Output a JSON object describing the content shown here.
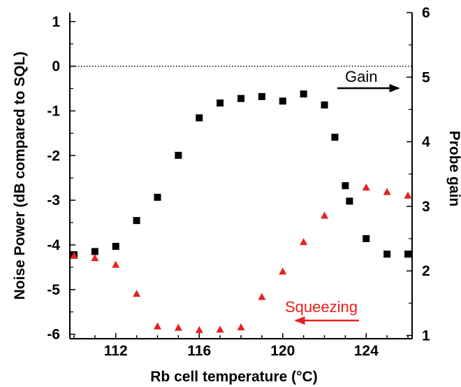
{
  "chart_data": {
    "type": "scatter",
    "title": "",
    "xlabel": "Rb cell temperature (°C)",
    "ylabel_left": "Noise Power (dB compared to SQL)",
    "ylabel_right": "Probe gain",
    "xlim": [
      109.8,
      126.2
    ],
    "ylim_left": [
      -6.1,
      1.2
    ],
    "ylim_right": [
      0.95,
      6.0
    ],
    "x_ticks": [
      112,
      116,
      120,
      124
    ],
    "x_tick_labels": [
      "112",
      "116",
      "120",
      "124"
    ],
    "y_left_ticks": [
      1,
      0,
      -1,
      -2,
      -3,
      -4,
      -5,
      -6
    ],
    "y_left_tick_labels": [
      "1",
      "0",
      "-1",
      "-2",
      "-3",
      "-4",
      "-5",
      "-6"
    ],
    "y_right_ticks": [
      1,
      2,
      3,
      4,
      5,
      6
    ],
    "y_right_tick_labels": [
      "1",
      "2",
      "3",
      "4",
      "5",
      "6"
    ],
    "reference_line": {
      "axis": "left",
      "y": 0,
      "style": "dotted"
    },
    "grid": false,
    "series": [
      {
        "name": "Gain",
        "axis": "right",
        "marker": "square",
        "color": "#000000",
        "x": [
          110,
          111,
          112,
          113,
          114,
          115,
          116,
          117,
          118,
          119,
          120,
          121,
          122,
          122.5,
          123,
          123.2,
          124,
          125,
          126
        ],
        "y": [
          2.25,
          2.3,
          2.38,
          2.78,
          3.14,
          3.79,
          4.37,
          4.6,
          4.67,
          4.7,
          4.63,
          4.74,
          4.57,
          4.07,
          3.32,
          3.08,
          2.5,
          2.26,
          2.26
        ]
      },
      {
        "name": "Squeezing",
        "axis": "left",
        "marker": "triangle",
        "color": "#e8201f",
        "x": [
          110,
          111,
          112,
          113,
          114,
          115,
          116,
          117,
          118,
          119,
          120,
          121,
          122,
          124,
          125,
          126
        ],
        "y": [
          -4.25,
          -4.3,
          -4.45,
          -5.1,
          -5.83,
          -5.86,
          -5.91,
          -5.9,
          -5.85,
          -5.17,
          -4.6,
          -3.94,
          -3.35,
          -2.72,
          -2.82,
          -2.9
        ]
      }
    ],
    "annotations": [
      {
        "text": "Gain",
        "arrow": "right",
        "color": "#000000"
      },
      {
        "text": "Squeezing",
        "arrow": "left",
        "color": "#e8201f"
      }
    ]
  }
}
